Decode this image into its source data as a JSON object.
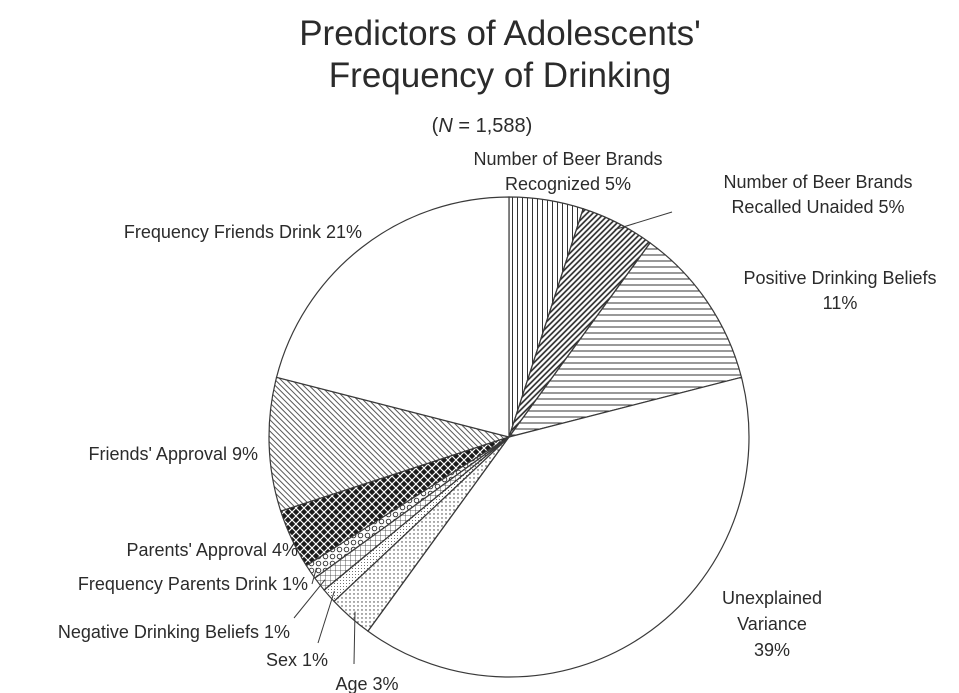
{
  "chart_data": {
    "type": "pie",
    "title": [
      "Predictors of Adolescents'",
      "Frequency of Drinking"
    ],
    "subtitle": {
      "prefix": "(",
      "italic": "N",
      "suffix": " = 1,588)"
    },
    "slices": [
      {
        "name": "Number of Beer Brands Recognized",
        "value": 5,
        "value_label": "5%",
        "pattern": "vertical-lines"
      },
      {
        "name": "Number of Beer Brands Recalled Unaided",
        "value": 5,
        "value_label": "5%",
        "pattern": "diagonal-dense"
      },
      {
        "name": "Positive Drinking Beliefs",
        "value": 11,
        "value_label": "11%",
        "pattern": "horizontal-lines"
      },
      {
        "name": "Unexplained Variance",
        "value": 39,
        "value_label": "39%",
        "pattern": "none"
      },
      {
        "name": "Age",
        "value": 3,
        "value_label": "3%",
        "pattern": "dots"
      },
      {
        "name": "Sex",
        "value": 1,
        "value_label": "1%",
        "pattern": "fine-dots"
      },
      {
        "name": "Negative Drinking Beliefs",
        "value": 1,
        "value_label": "1%",
        "pattern": "grid"
      },
      {
        "name": "Frequency Parents Drink",
        "value": 1,
        "value_label": "1%",
        "pattern": "circles"
      },
      {
        "name": "Parents' Approval",
        "value": 4,
        "value_label": "4%",
        "pattern": "dark-weave"
      },
      {
        "name": "Friends' Approval",
        "value": 9,
        "value_label": "9%",
        "pattern": "diagonal-fine"
      },
      {
        "name": "Frequency Friends Drink",
        "value": 21,
        "value_label": "21%",
        "pattern": "none"
      }
    ],
    "labels": [
      {
        "lines": [
          "Number of Beer Brands",
          "Recognized 5%"
        ]
      },
      {
        "lines": [
          "Number of Beer Brands",
          "Recalled Unaided 5%"
        ]
      },
      {
        "lines": [
          "Positive Drinking Beliefs",
          "11%"
        ]
      },
      {
        "lines": [
          "Unexplained",
          "Variance",
          "39%"
        ]
      },
      {
        "lines": [
          "Age 3%"
        ]
      },
      {
        "lines": [
          "Sex 1%"
        ]
      },
      {
        "lines": [
          "Negative Drinking Beliefs 1%"
        ]
      },
      {
        "lines": [
          "Frequency Parents Drink 1%"
        ]
      },
      {
        "lines": [
          "Parents' Approval 4%"
        ]
      },
      {
        "lines": [
          "Friends' Approval 9%"
        ]
      },
      {
        "lines": [
          "Frequency Friends Drink 21%"
        ]
      }
    ],
    "start_angle": "12 o'clock",
    "direction": "clockwise",
    "legend": "none",
    "colors": {
      "ink": "#2b2b2b",
      "dark_fill": "#1a1a1a",
      "background": "#ffffff"
    }
  }
}
